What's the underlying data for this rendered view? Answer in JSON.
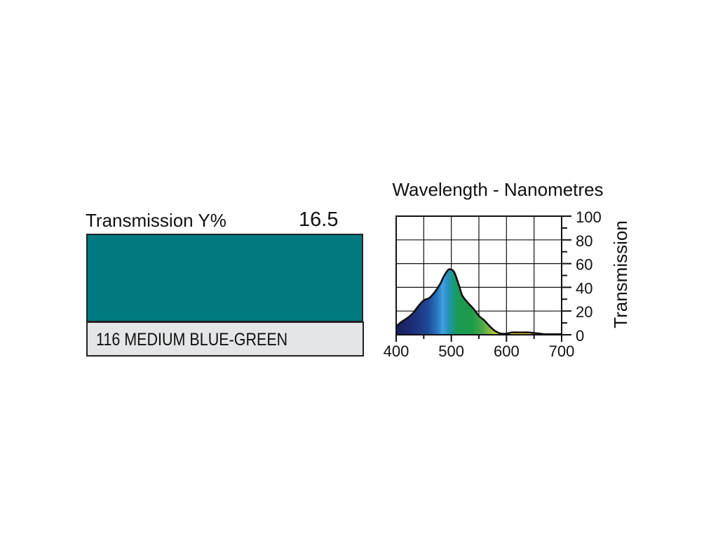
{
  "filter": {
    "transmission_label": "Transmission Y%",
    "transmission_value": "16.5",
    "name": "116 MEDIUM BLUE-GREEN",
    "swatch_color": "#007a80",
    "name_bg_color": "#e4e5e7"
  },
  "chart_data": {
    "type": "area",
    "title": "Wavelength - Nanometres",
    "xlabel": "",
    "ylabel": "Transmission",
    "xlim": [
      400,
      700
    ],
    "ylim": [
      0,
      100
    ],
    "x_ticks": [
      400,
      500,
      600,
      700
    ],
    "y_ticks": [
      0,
      20,
      40,
      60,
      80,
      100
    ],
    "grid": true,
    "series": [
      {
        "x": [
          400,
          410,
          420,
          430,
          440,
          450,
          460,
          470,
          480,
          485,
          490,
          495,
          500,
          505,
          510,
          515,
          520,
          530,
          540,
          550,
          560,
          570,
          580,
          590,
          600,
          610,
          620,
          630,
          640,
          650,
          660,
          670,
          680,
          690,
          700
        ],
        "y": [
          7,
          11,
          14,
          18,
          24,
          29,
          31,
          36,
          43,
          48,
          52,
          55,
          55,
          53,
          47,
          40,
          33,
          27,
          22,
          16,
          12,
          7,
          3,
          1,
          1,
          2,
          2,
          2,
          2,
          1.5,
          1,
          0.5,
          0.5,
          0.5,
          0.5
        ]
      }
    ]
  }
}
